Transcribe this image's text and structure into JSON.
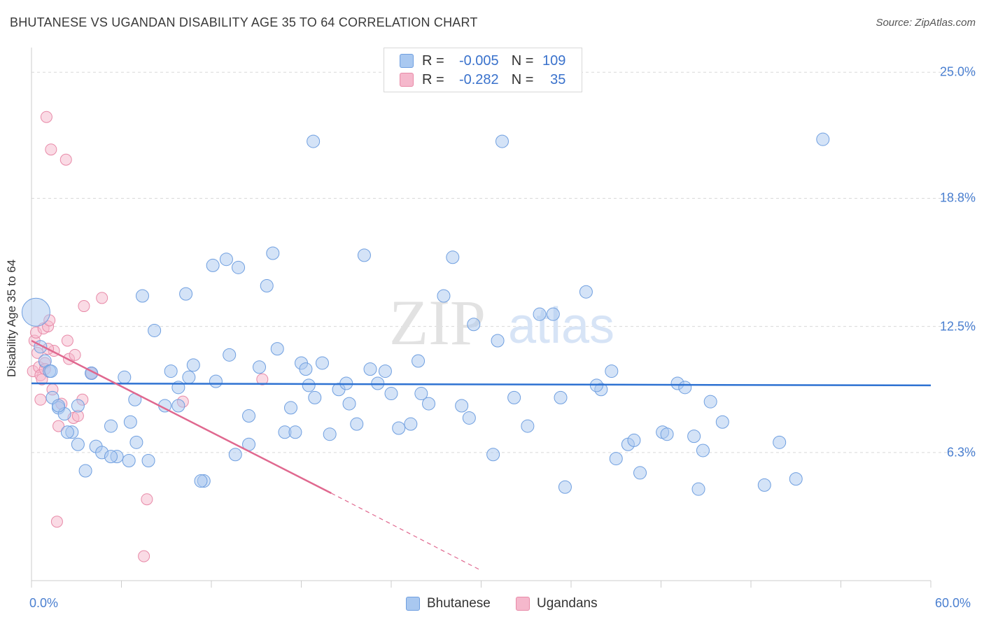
{
  "title": "BHUTANESE VS UGANDAN DISABILITY AGE 35 TO 64 CORRELATION CHART",
  "source": "Source: ZipAtlas.com",
  "watermark": {
    "zip": "ZIP",
    "atlas": "atlas"
  },
  "colors": {
    "blue_fill": "#a9c8f0",
    "blue_stroke": "#6f9fe0",
    "blue_line": "#2e72d2",
    "pink_fill": "#f5b8cc",
    "pink_stroke": "#e88aa8",
    "pink_line": "#e0688f",
    "tick_text": "#4a7fd0",
    "grid": "#d9d9d9"
  },
  "legend": {
    "rows": [
      {
        "r_label": "R =",
        "r_value": "-0.005",
        "n_label": "N =",
        "n_value": "109",
        "color": "blue"
      },
      {
        "r_label": "R =",
        "r_value": "-0.282",
        "n_label": "N =",
        "n_value": "35",
        "color": "pink"
      }
    ]
  },
  "bottom_legend": [
    "Bhutanese",
    "Ugandans"
  ],
  "chart_data": {
    "type": "scatter",
    "title": "BHUTANESE VS UGANDAN DISABILITY AGE 35 TO 64 CORRELATION CHART",
    "xlabel": "",
    "ylabel": "Disability Age 35 to 64",
    "xlim": [
      0,
      60
    ],
    "ylim": [
      0,
      25.8
    ],
    "x_tick_labels": [
      "0.0%",
      "60.0%"
    ],
    "y_ticks": [
      6.3,
      12.5,
      18.8,
      25.0
    ],
    "y_tick_labels": [
      "6.3%",
      "12.5%",
      "18.8%",
      "25.0%"
    ],
    "grid": true,
    "legend_placement": "top-center",
    "series": [
      {
        "name": "Bhutanese",
        "color": "blue",
        "points": [
          [
            0.3,
            13.2
          ],
          [
            0.6,
            11.5
          ],
          [
            0.9,
            10.8
          ],
          [
            1.2,
            10.3
          ],
          [
            1.4,
            9.0
          ],
          [
            1.8,
            8.5
          ],
          [
            2.2,
            8.2
          ],
          [
            2.7,
            7.3
          ],
          [
            3.1,
            6.7
          ],
          [
            3.6,
            5.4
          ],
          [
            4.0,
            10.2
          ],
          [
            4.3,
            6.6
          ],
          [
            4.7,
            6.3
          ],
          [
            5.3,
            7.6
          ],
          [
            5.7,
            6.1
          ],
          [
            6.2,
            10.0
          ],
          [
            6.6,
            7.8
          ],
          [
            7.0,
            6.8
          ],
          [
            7.4,
            14.0
          ],
          [
            7.8,
            5.9
          ],
          [
            8.2,
            12.3
          ],
          [
            8.9,
            8.6
          ],
          [
            9.3,
            10.3
          ],
          [
            9.8,
            9.5
          ],
          [
            10.5,
            10.0
          ],
          [
            10.3,
            14.1
          ],
          [
            10.8,
            10.6
          ],
          [
            11.5,
            4.9
          ],
          [
            12.3,
            9.8
          ],
          [
            12.1,
            15.5
          ],
          [
            13.0,
            15.8
          ],
          [
            13.2,
            11.1
          ],
          [
            13.8,
            15.4
          ],
          [
            13.6,
            6.2
          ],
          [
            14.5,
            8.1
          ],
          [
            15.2,
            10.5
          ],
          [
            15.7,
            14.5
          ],
          [
            16.1,
            16.1
          ],
          [
            16.4,
            11.4
          ],
          [
            16.9,
            7.3
          ],
          [
            17.3,
            8.5
          ],
          [
            18.0,
            10.7
          ],
          [
            18.3,
            10.4
          ],
          [
            18.5,
            9.6
          ],
          [
            18.9,
            9.0
          ],
          [
            19.4,
            10.7
          ],
          [
            19.9,
            7.2
          ],
          [
            20.5,
            9.4
          ],
          [
            21.0,
            9.7
          ],
          [
            21.2,
            8.7
          ],
          [
            21.7,
            7.7
          ],
          [
            22.2,
            16.0
          ],
          [
            22.6,
            10.4
          ],
          [
            23.1,
            9.7
          ],
          [
            23.6,
            10.3
          ],
          [
            24.0,
            9.2
          ],
          [
            24.5,
            7.5
          ],
          [
            25.3,
            7.7
          ],
          [
            25.8,
            10.8
          ],
          [
            26.0,
            9.2
          ],
          [
            26.5,
            8.7
          ],
          [
            27.5,
            14.0
          ],
          [
            28.1,
            15.9
          ],
          [
            28.7,
            8.6
          ],
          [
            29.2,
            8.0
          ],
          [
            29.5,
            12.6
          ],
          [
            31.1,
            11.8
          ],
          [
            30.8,
            6.2
          ],
          [
            32.2,
            9.0
          ],
          [
            33.1,
            7.6
          ],
          [
            33.9,
            13.1
          ],
          [
            34.8,
            13.1
          ],
          [
            35.3,
            9.0
          ],
          [
            35.6,
            4.6
          ],
          [
            37.0,
            14.2
          ],
          [
            38.0,
            9.4
          ],
          [
            37.7,
            9.6
          ],
          [
            38.7,
            10.3
          ],
          [
            39.0,
            6.0
          ],
          [
            39.8,
            6.7
          ],
          [
            40.2,
            6.9
          ],
          [
            40.6,
            5.3
          ],
          [
            42.1,
            7.3
          ],
          [
            42.4,
            7.2
          ],
          [
            43.1,
            9.7
          ],
          [
            43.6,
            9.5
          ],
          [
            44.2,
            7.1
          ],
          [
            44.5,
            4.5
          ],
          [
            44.8,
            6.4
          ],
          [
            45.3,
            8.8
          ],
          [
            46.1,
            7.8
          ],
          [
            48.9,
            4.7
          ],
          [
            49.9,
            6.8
          ],
          [
            51.0,
            5.0
          ],
          [
            52.8,
            21.7
          ],
          [
            18.8,
            21.6
          ],
          [
            31.4,
            21.6
          ],
          [
            14.5,
            6.7
          ],
          [
            11.3,
            4.9
          ],
          [
            6.5,
            5.9
          ],
          [
            5.3,
            6.1
          ],
          [
            3.1,
            8.6
          ],
          [
            2.4,
            7.3
          ],
          [
            1.8,
            8.6
          ],
          [
            1.3,
            10.3
          ],
          [
            4.0,
            10.2
          ],
          [
            9.8,
            8.6
          ],
          [
            6.9,
            8.9
          ],
          [
            17.6,
            7.3
          ]
        ],
        "trend": {
          "x_start": 0,
          "y_start": 9.7,
          "x_end": 60,
          "y_end": 9.6
        }
      },
      {
        "name": "Ugandans",
        "color": "pink",
        "points": [
          [
            0.1,
            10.3
          ],
          [
            0.2,
            11.8
          ],
          [
            0.3,
            12.2
          ],
          [
            0.4,
            11.2
          ],
          [
            0.5,
            10.5
          ],
          [
            0.6,
            10.1
          ],
          [
            0.6,
            8.9
          ],
          [
            0.8,
            12.4
          ],
          [
            0.9,
            10.7
          ],
          [
            1.0,
            22.8
          ],
          [
            1.1,
            12.5
          ],
          [
            1.2,
            12.8
          ],
          [
            1.3,
            21.2
          ],
          [
            1.4,
            9.4
          ],
          [
            1.5,
            11.3
          ],
          [
            1.7,
            2.9
          ],
          [
            1.8,
            7.6
          ],
          [
            2.0,
            8.7
          ],
          [
            2.3,
            20.7
          ],
          [
            2.4,
            11.8
          ],
          [
            2.5,
            10.9
          ],
          [
            2.8,
            8.0
          ],
          [
            2.9,
            11.1
          ],
          [
            3.1,
            8.1
          ],
          [
            3.4,
            8.9
          ],
          [
            3.5,
            13.5
          ],
          [
            4.0,
            10.2
          ],
          [
            4.7,
            13.9
          ],
          [
            7.5,
            1.2
          ],
          [
            7.7,
            4.0
          ],
          [
            10.1,
            8.8
          ],
          [
            15.4,
            9.9
          ],
          [
            1.1,
            11.4
          ],
          [
            0.9,
            10.4
          ],
          [
            0.7,
            9.9
          ]
        ],
        "trend": {
          "x_start": 0,
          "y_start": 11.8,
          "x_end": 20,
          "y_end": 4.3,
          "dash_x_end": 30,
          "dash_y_end": 0.5
        }
      }
    ]
  }
}
